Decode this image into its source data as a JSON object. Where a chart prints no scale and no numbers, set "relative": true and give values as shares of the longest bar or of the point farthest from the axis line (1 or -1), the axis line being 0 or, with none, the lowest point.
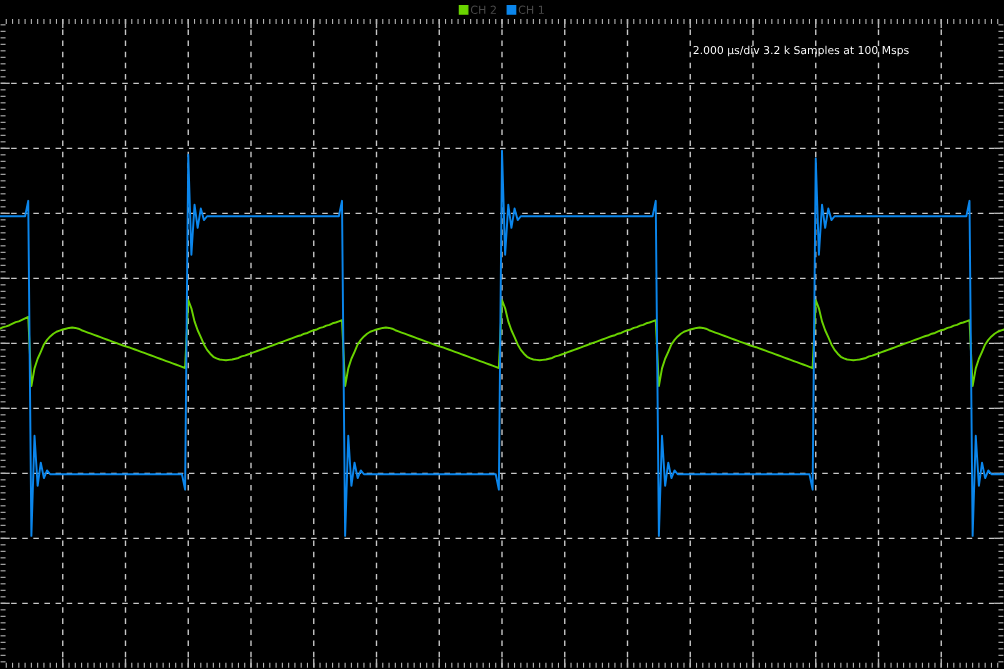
{
  "chart_data": {
    "type": "line",
    "relative": true,
    "legend": "top",
    "grid": true,
    "annotations": [
      "2.000 µs/div 3.2 k Samples at 100 Msps"
    ],
    "categories": [
      null,
      null,
      null,
      null,
      null,
      null,
      null,
      null,
      null,
      null,
      null,
      null,
      null,
      null,
      null,
      null,
      null,
      null,
      null,
      null,
      null,
      null,
      null,
      null,
      null,
      null,
      null,
      null,
      null,
      null,
      null,
      null,
      null,
      null,
      null,
      null,
      null,
      null,
      null,
      null,
      null,
      null,
      null,
      null,
      null,
      null,
      null,
      null,
      null,
      null,
      null,
      null,
      null,
      null,
      null,
      null,
      null,
      null,
      null,
      null,
      null,
      null,
      null,
      null,
      null,
      null,
      null,
      null,
      null,
      null,
      null,
      null,
      null,
      null,
      null,
      null,
      null,
      null,
      null,
      null,
      null,
      null,
      null,
      null,
      null,
      null,
      null,
      null,
      null,
      null,
      null,
      null,
      null,
      null,
      null,
      null,
      null,
      null,
      null,
      null,
      null,
      null,
      null,
      null,
      null,
      null,
      null,
      null,
      null,
      null,
      null,
      null,
      null,
      null,
      null,
      null,
      null,
      null,
      null,
      null,
      null,
      null,
      null,
      null,
      null,
      null,
      null,
      null,
      null,
      null,
      null,
      null,
      null,
      null,
      null,
      null,
      null,
      null,
      null,
      null,
      null,
      null,
      null,
      null,
      null,
      null,
      null,
      null,
      null,
      null,
      null,
      null,
      null,
      null,
      null,
      null,
      null,
      null,
      null,
      null,
      null,
      null,
      null,
      null,
      null,
      null,
      null,
      null,
      null,
      null,
      null,
      null,
      null,
      null,
      null,
      null,
      null,
      null,
      null,
      null,
      null,
      null,
      null,
      null,
      null,
      null,
      null,
      null,
      null,
      null,
      null,
      null,
      null,
      null,
      null,
      null,
      null,
      null,
      null,
      null,
      null,
      null,
      null,
      null,
      null,
      null,
      null,
      null,
      null,
      null,
      null,
      null,
      null,
      null,
      null,
      null,
      null,
      null,
      null,
      null,
      null,
      null,
      null,
      null,
      null,
      null,
      null,
      null,
      null,
      null,
      null,
      null,
      null,
      null,
      null,
      null,
      null,
      null,
      null,
      null,
      null,
      null,
      null,
      null,
      null,
      null,
      null,
      null,
      null,
      null,
      null,
      null,
      null,
      null,
      null,
      null,
      null,
      null,
      null,
      null,
      null,
      null,
      null,
      null,
      null,
      null,
      null,
      null,
      null,
      null,
      null,
      null,
      null,
      null,
      null,
      null,
      null,
      null,
      null,
      null,
      null,
      null,
      null,
      null,
      null,
      null,
      null,
      null,
      null,
      null,
      null,
      null,
      null,
      null,
      null,
      null,
      null,
      null,
      null,
      null,
      null,
      null,
      null,
      null,
      null,
      null,
      null,
      null,
      null,
      null,
      null,
      null,
      null,
      null,
      null,
      null,
      null,
      null,
      null,
      null,
      null
    ],
    "series": [
      {
        "name": "CH 2",
        "color": "#6ad400",
        "values": [
          0.538,
          0.542,
          0.544,
          0.547,
          0.551,
          0.555,
          0.557,
          0.561,
          0.565,
          0.569,
          0.389,
          0.435,
          0.46,
          0.478,
          0.497,
          0.509,
          0.518,
          0.525,
          0.53,
          0.533,
          0.536,
          0.538,
          0.54,
          0.541,
          0.54,
          0.538,
          0.534,
          0.531,
          0.528,
          0.525,
          0.522,
          0.519,
          0.516,
          0.513,
          0.51,
          0.507,
          0.504,
          0.501,
          0.498,
          0.495,
          0.492,
          0.49,
          0.487,
          0.484,
          0.481,
          0.478,
          0.475,
          0.472,
          0.469,
          0.466,
          0.463,
          0.46,
          0.457,
          0.454,
          0.451,
          0.448,
          0.445,
          0.442,
          0.439,
          0.436,
          0.612,
          0.591,
          0.557,
          0.534,
          0.516,
          0.497,
          0.483,
          0.473,
          0.465,
          0.461,
          0.458,
          0.457,
          0.456,
          0.457,
          0.458,
          0.46,
          0.462,
          0.466,
          0.468,
          0.471,
          0.474,
          0.477,
          0.48,
          0.483,
          0.486,
          0.489,
          0.492,
          0.495,
          0.498,
          0.501,
          0.504,
          0.507,
          0.51,
          0.513,
          0.516,
          0.519,
          0.521,
          0.525,
          0.527,
          0.531,
          0.534,
          0.536,
          0.54,
          0.542,
          0.546,
          0.548,
          0.552,
          0.554,
          0.557,
          0.56,
          0.389,
          0.435,
          0.46,
          0.478,
          0.497,
          0.509,
          0.518,
          0.525,
          0.53,
          0.533,
          0.536,
          0.538,
          0.54,
          0.541,
          0.54,
          0.538,
          0.534,
          0.531,
          0.528,
          0.525,
          0.522,
          0.519,
          0.516,
          0.513,
          0.51,
          0.507,
          0.504,
          0.501,
          0.498,
          0.495,
          0.492,
          0.49,
          0.487,
          0.484,
          0.481,
          0.478,
          0.475,
          0.472,
          0.469,
          0.466,
          0.463,
          0.46,
          0.457,
          0.454,
          0.451,
          0.448,
          0.445,
          0.442,
          0.439,
          0.436,
          0.612,
          0.591,
          0.557,
          0.534,
          0.516,
          0.497,
          0.483,
          0.473,
          0.465,
          0.461,
          0.458,
          0.457,
          0.456,
          0.457,
          0.458,
          0.46,
          0.462,
          0.466,
          0.468,
          0.471,
          0.474,
          0.477,
          0.48,
          0.483,
          0.486,
          0.489,
          0.492,
          0.495,
          0.498,
          0.501,
          0.504,
          0.507,
          0.51,
          0.513,
          0.516,
          0.519,
          0.521,
          0.525,
          0.527,
          0.531,
          0.534,
          0.536,
          0.54,
          0.542,
          0.546,
          0.548,
          0.552,
          0.554,
          0.557,
          0.56,
          0.389,
          0.435,
          0.46,
          0.478,
          0.497,
          0.509,
          0.518,
          0.525,
          0.53,
          0.533,
          0.536,
          0.538,
          0.54,
          0.541,
          0.54,
          0.538,
          0.534,
          0.531,
          0.528,
          0.525,
          0.522,
          0.519,
          0.516,
          0.513,
          0.51,
          0.507,
          0.504,
          0.501,
          0.498,
          0.495,
          0.492,
          0.49,
          0.487,
          0.484,
          0.481,
          0.478,
          0.475,
          0.472,
          0.469,
          0.466,
          0.463,
          0.46,
          0.457,
          0.454,
          0.451,
          0.448,
          0.445,
          0.442,
          0.439,
          0.436,
          0.612,
          0.591,
          0.557,
          0.534,
          0.516,
          0.497,
          0.483,
          0.473,
          0.465,
          0.461,
          0.458,
          0.457,
          0.456,
          0.457,
          0.458,
          0.46,
          0.462,
          0.466,
          0.468,
          0.471,
          0.474,
          0.477,
          0.48,
          0.483,
          0.486,
          0.489,
          0.492,
          0.495,
          0.498,
          0.501,
          0.504,
          0.507,
          0.51,
          0.513,
          0.516,
          0.519,
          0.521,
          0.525,
          0.527,
          0.531,
          0.534,
          0.536,
          0.54,
          0.542,
          0.546,
          0.548,
          0.552,
          0.554,
          0.557,
          0.56,
          0.389,
          0.435,
          0.46,
          0.478,
          0.497,
          0.509,
          0.518,
          0.525,
          0.53,
          0.533,
          0.536
        ]
      },
      {
        "name": "CH 1",
        "color": "#0b86ec",
        "values": [
          0.83,
          0.83,
          0.83,
          0.83,
          0.83,
          0.83,
          0.83,
          0.83,
          0.83,
          0.87,
          0.0,
          0.26,
          0.13,
          0.19,
          0.15,
          0.17,
          0.16,
          0.16,
          0.16,
          0.16,
          0.16,
          0.16,
          0.16,
          0.16,
          0.16,
          0.16,
          0.16,
          0.16,
          0.16,
          0.16,
          0.16,
          0.16,
          0.16,
          0.16,
          0.16,
          0.16,
          0.16,
          0.16,
          0.16,
          0.16,
          0.16,
          0.16,
          0.16,
          0.16,
          0.16,
          0.16,
          0.16,
          0.16,
          0.16,
          0.16,
          0.16,
          0.16,
          0.16,
          0.16,
          0.16,
          0.16,
          0.16,
          0.16,
          0.16,
          0.12,
          0.99,
          0.73,
          0.86,
          0.8,
          0.85,
          0.82,
          0.83,
          0.83,
          0.83,
          0.83,
          0.83,
          0.83,
          0.83,
          0.83,
          0.83,
          0.83,
          0.83,
          0.83,
          0.83,
          0.83,
          0.83,
          0.83,
          0.83,
          0.83,
          0.83,
          0.83,
          0.83,
          0.83,
          0.83,
          0.83,
          0.83,
          0.83,
          0.83,
          0.83,
          0.83,
          0.83,
          0.83,
          0.83,
          0.83,
          0.83,
          0.83,
          0.83,
          0.83,
          0.83,
          0.83,
          0.83,
          0.83,
          0.83,
          0.83,
          0.87,
          0.0,
          0.26,
          0.13,
          0.19,
          0.15,
          0.17,
          0.16,
          0.16,
          0.16,
          0.16,
          0.16,
          0.16,
          0.16,
          0.16,
          0.16,
          0.16,
          0.16,
          0.16,
          0.16,
          0.16,
          0.16,
          0.16,
          0.16,
          0.16,
          0.16,
          0.16,
          0.16,
          0.16,
          0.16,
          0.16,
          0.16,
          0.16,
          0.16,
          0.16,
          0.16,
          0.16,
          0.16,
          0.16,
          0.16,
          0.16,
          0.16,
          0.16,
          0.16,
          0.16,
          0.16,
          0.16,
          0.16,
          0.16,
          0.16,
          0.12,
          1.0,
          0.73,
          0.86,
          0.8,
          0.85,
          0.82,
          0.83,
          0.83,
          0.83,
          0.83,
          0.83,
          0.83,
          0.83,
          0.83,
          0.83,
          0.83,
          0.83,
          0.83,
          0.83,
          0.83,
          0.83,
          0.83,
          0.83,
          0.83,
          0.83,
          0.83,
          0.83,
          0.83,
          0.83,
          0.83,
          0.83,
          0.83,
          0.83,
          0.83,
          0.83,
          0.83,
          0.83,
          0.83,
          0.83,
          0.83,
          0.83,
          0.83,
          0.83,
          0.83,
          0.83,
          0.83,
          0.83,
          0.83,
          0.83,
          0.87,
          0.0,
          0.26,
          0.13,
          0.19,
          0.15,
          0.17,
          0.16,
          0.16,
          0.16,
          0.16,
          0.16,
          0.16,
          0.16,
          0.16,
          0.16,
          0.16,
          0.16,
          0.16,
          0.16,
          0.16,
          0.16,
          0.16,
          0.16,
          0.16,
          0.16,
          0.16,
          0.16,
          0.16,
          0.16,
          0.16,
          0.16,
          0.16,
          0.16,
          0.16,
          0.16,
          0.16,
          0.16,
          0.16,
          0.16,
          0.16,
          0.16,
          0.16,
          0.16,
          0.16,
          0.16,
          0.16,
          0.16,
          0.16,
          0.16,
          0.12,
          0.98,
          0.73,
          0.86,
          0.8,
          0.85,
          0.82,
          0.83,
          0.83,
          0.83,
          0.83,
          0.83,
          0.83,
          0.83,
          0.83,
          0.83,
          0.83,
          0.83,
          0.83,
          0.83,
          0.83,
          0.83,
          0.83,
          0.83,
          0.83,
          0.83,
          0.83,
          0.83,
          0.83,
          0.83,
          0.83,
          0.83,
          0.83,
          0.83,
          0.83,
          0.83,
          0.83,
          0.83,
          0.83,
          0.83,
          0.83,
          0.83,
          0.83,
          0.83,
          0.83,
          0.83,
          0.83,
          0.83,
          0.83,
          0.83,
          0.87,
          0.0,
          0.26,
          0.13,
          0.19,
          0.15,
          0.17,
          0.16,
          0.16,
          0.16,
          0.16,
          0.16
        ]
      }
    ]
  }
}
